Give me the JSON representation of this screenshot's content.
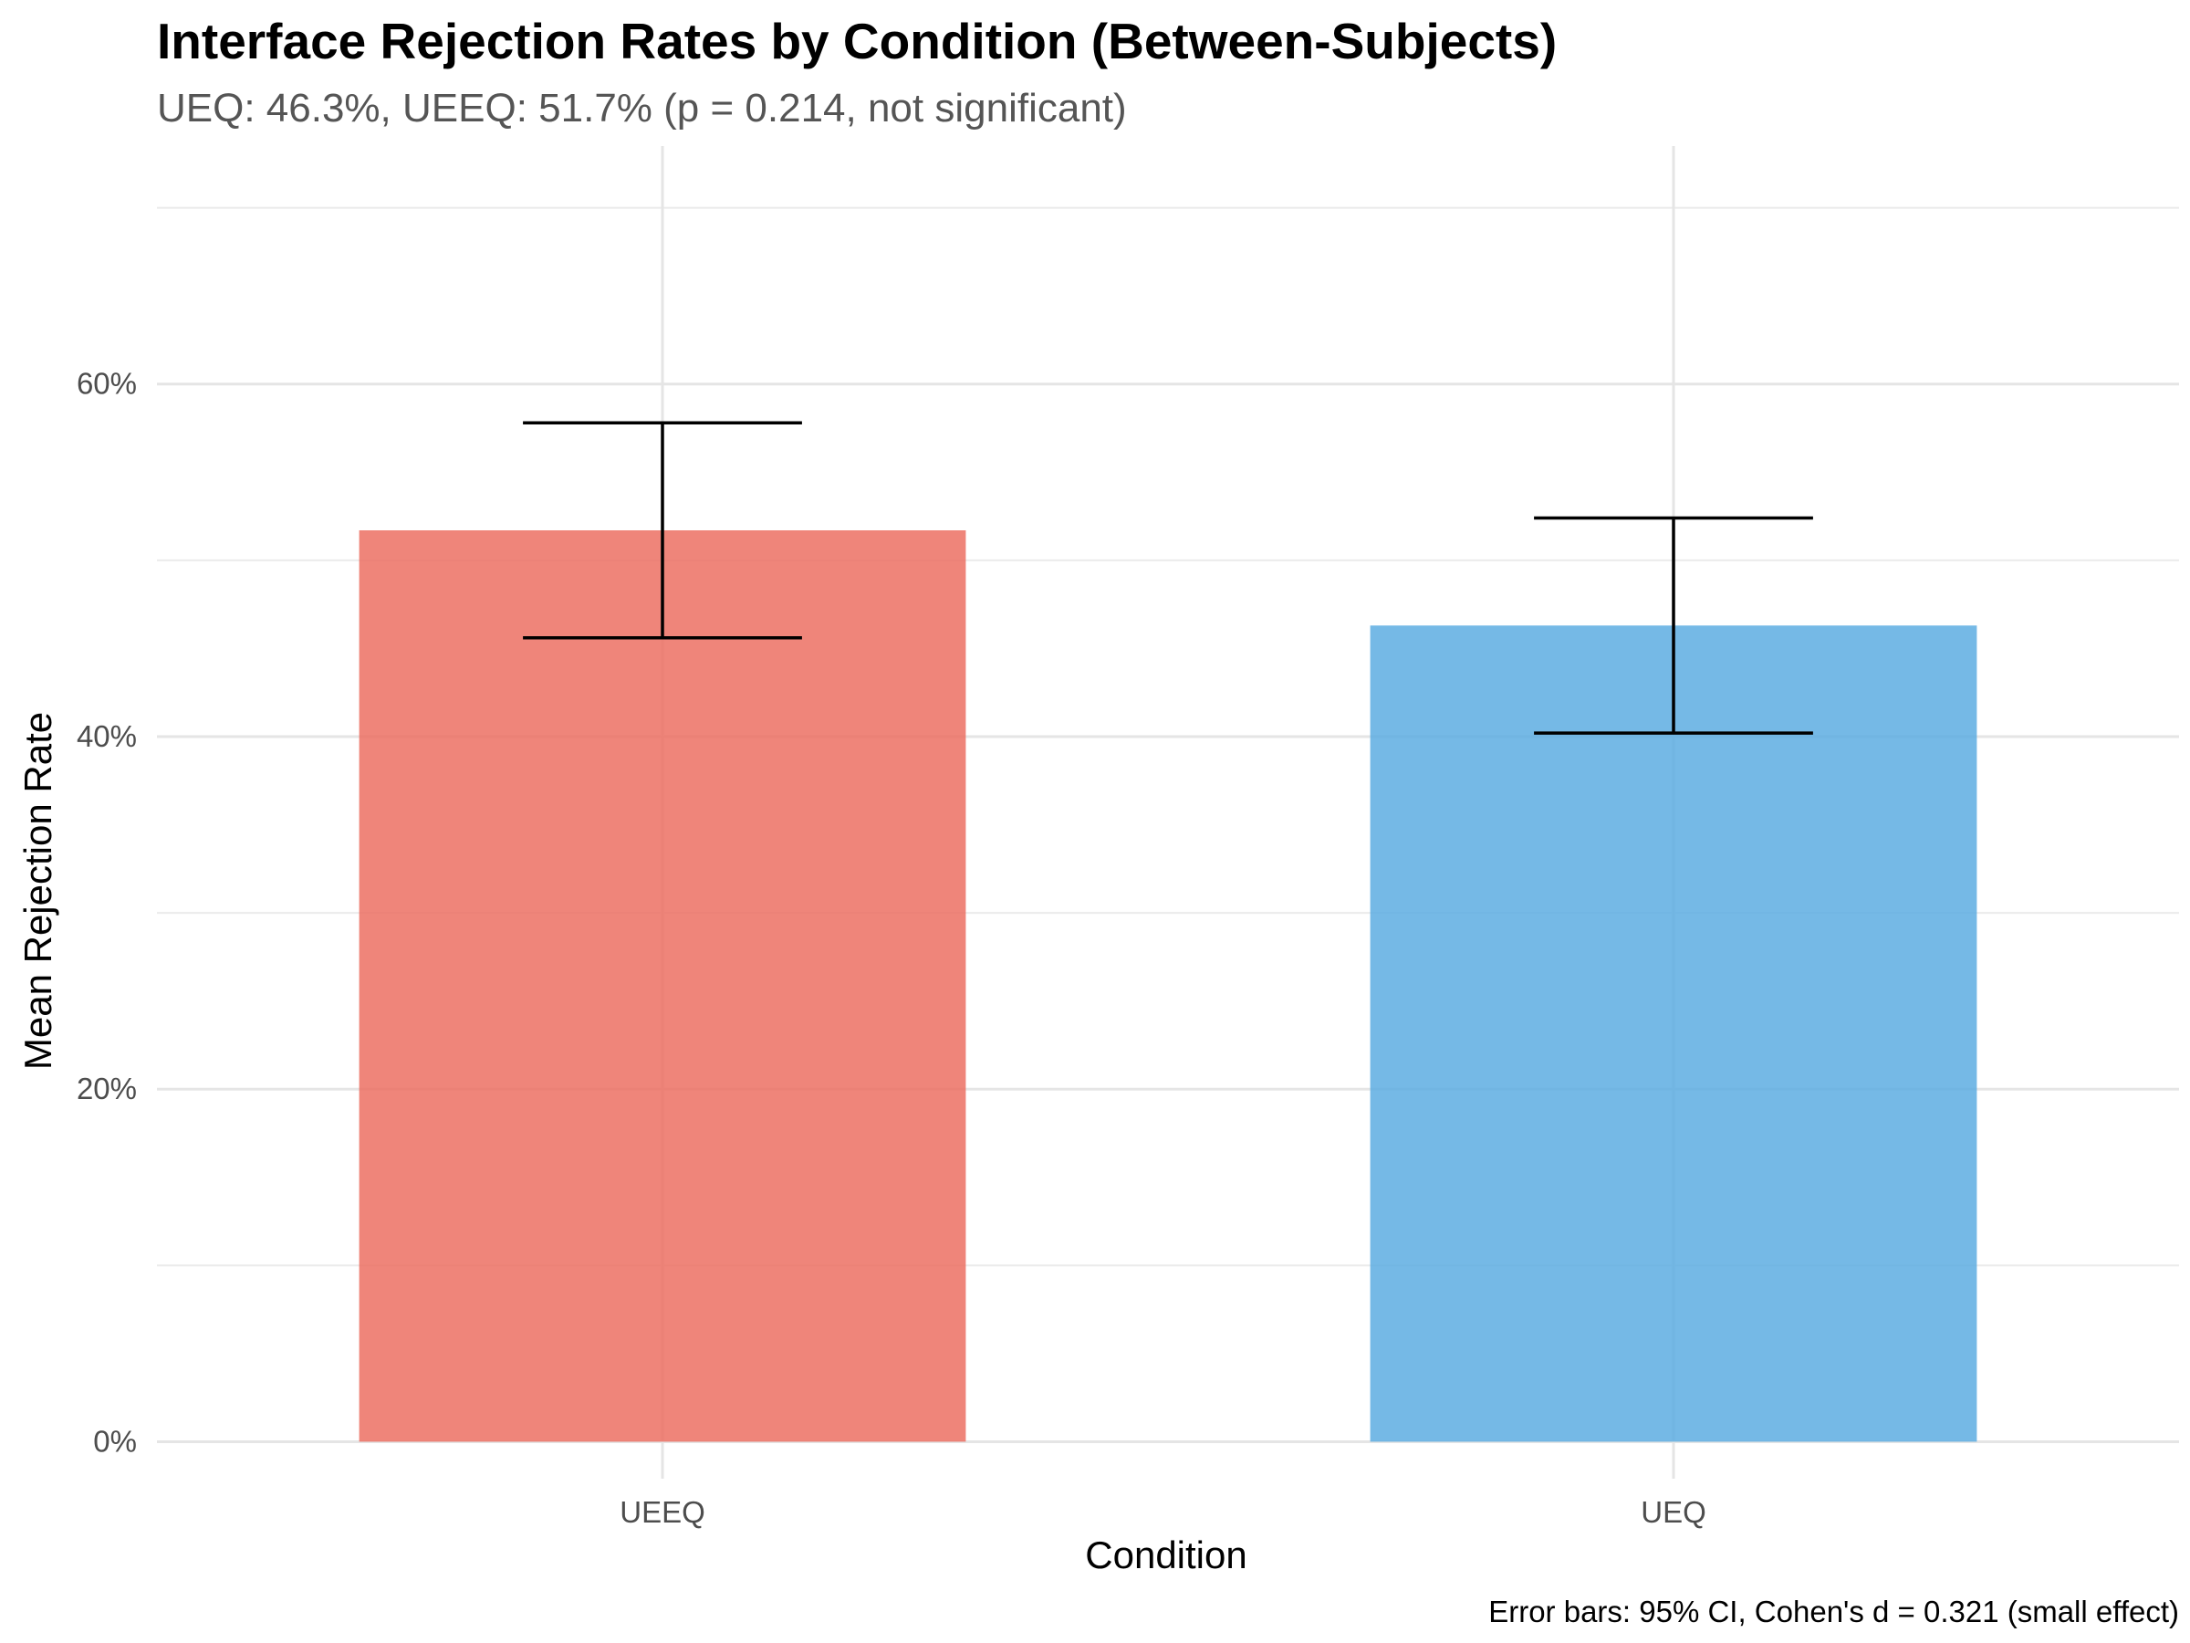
{
  "chart_data": {
    "type": "bar",
    "title": "Interface Rejection Rates by Condition (Between-Subjects)",
    "subtitle": "UEQ: 46.3%, UEEQ: 51.7% (p = 0.214, not significant)",
    "xlabel": "Condition",
    "ylabel": "Mean Rejection Rate",
    "caption": "Error bars: 95% CI, Cohen's d = 0.321 (small effect)",
    "categories": [
      "UEEQ",
      "UEQ"
    ],
    "values": [
      51.7,
      46.3
    ],
    "ci_lower": [
      45.6,
      40.2
    ],
    "ci_upper": [
      57.8,
      52.4
    ],
    "colors": [
      "#ec7063",
      "#5dade2"
    ],
    "ylim": [
      -2.1,
      73.5
    ],
    "yticks": [
      0,
      20,
      40,
      60
    ],
    "ytick_labels": [
      "0%",
      "20%",
      "40%",
      "60%"
    ],
    "y_minor_ticks": [
      10,
      30,
      50,
      70
    ],
    "grid": true,
    "legend": "none"
  }
}
